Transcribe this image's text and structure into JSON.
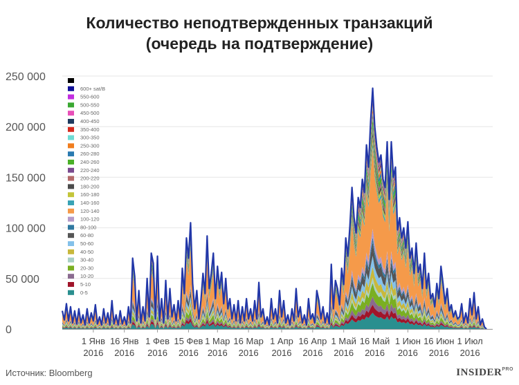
{
  "chart_data": {
    "type": "area",
    "title_line1": "Количество неподтвержденных транзакций",
    "title_line2": "(очередь на подтверждение)",
    "xlabel": "",
    "ylabel": "",
    "ylim": [
      0,
      250000
    ],
    "y_ticks": [
      {
        "value": 0,
        "label": "0"
      },
      {
        "value": 50000,
        "label": "50 000"
      },
      {
        "value": 100000,
        "label": "100 000"
      },
      {
        "value": 150000,
        "label": "150 000"
      },
      {
        "value": 200000,
        "label": "200 000"
      },
      {
        "value": 250000,
        "label": "250 000"
      }
    ],
    "x_range_days": [
      0,
      208
    ],
    "x_ticks": [
      {
        "day": 15,
        "line1": "1 Янв",
        "line2": "2016"
      },
      {
        "day": 30,
        "line1": "16 Янв",
        "line2": "2016"
      },
      {
        "day": 46,
        "line1": "1 Фев",
        "line2": "2016"
      },
      {
        "day": 61,
        "line1": "15 Фев",
        "line2": "2016"
      },
      {
        "day": 75,
        "line1": "1 Мар",
        "line2": "2016"
      },
      {
        "day": 90,
        "line1": "16 Мар",
        "line2": "2016"
      },
      {
        "day": 106,
        "line1": "1 Апр",
        "line2": "2016"
      },
      {
        "day": 121,
        "line1": "16 Апр",
        "line2": "2016"
      },
      {
        "day": 136,
        "line1": "1 Май",
        "line2": "2016"
      },
      {
        "day": 151,
        "line1": "16 Май",
        "line2": "2016"
      },
      {
        "day": 167,
        "line1": "1 Июн",
        "line2": "2016"
      },
      {
        "day": 182,
        "line1": "16 Июн",
        "line2": "2016"
      },
      {
        "day": 197,
        "line1": "1 Июл",
        "line2": "2016"
      }
    ],
    "total": [
      [
        0,
        18000
      ],
      [
        1,
        9000
      ],
      [
        2,
        25000
      ],
      [
        3,
        8000
      ],
      [
        4,
        22000
      ],
      [
        5,
        6000
      ],
      [
        6,
        18000
      ],
      [
        7,
        5000
      ],
      [
        8,
        20000
      ],
      [
        9,
        6000
      ],
      [
        10,
        14000
      ],
      [
        11,
        4000
      ],
      [
        12,
        20000
      ],
      [
        13,
        6000
      ],
      [
        14,
        16000
      ],
      [
        15,
        8000
      ],
      [
        16,
        24000
      ],
      [
        17,
        5000
      ],
      [
        18,
        12000
      ],
      [
        19,
        4000
      ],
      [
        20,
        20000
      ],
      [
        21,
        6000
      ],
      [
        22,
        16000
      ],
      [
        23,
        4000
      ],
      [
        24,
        28000
      ],
      [
        25,
        5000
      ],
      [
        26,
        14000
      ],
      [
        27,
        4000
      ],
      [
        28,
        18000
      ],
      [
        29,
        5000
      ],
      [
        30,
        12000
      ],
      [
        31,
        4000
      ],
      [
        32,
        22000
      ],
      [
        33,
        6000
      ],
      [
        34,
        70000
      ],
      [
        35,
        52000
      ],
      [
        36,
        8000
      ],
      [
        37,
        38000
      ],
      [
        38,
        6000
      ],
      [
        39,
        22000
      ],
      [
        40,
        8000
      ],
      [
        41,
        50000
      ],
      [
        42,
        12000
      ],
      [
        43,
        75000
      ],
      [
        44,
        65000
      ],
      [
        45,
        10000
      ],
      [
        46,
        72000
      ],
      [
        47,
        8000
      ],
      [
        48,
        30000
      ],
      [
        49,
        6000
      ],
      [
        50,
        48000
      ],
      [
        51,
        10000
      ],
      [
        52,
        40000
      ],
      [
        53,
        12000
      ],
      [
        54,
        24000
      ],
      [
        55,
        8000
      ],
      [
        56,
        28000
      ],
      [
        57,
        10000
      ],
      [
        58,
        60000
      ],
      [
        59,
        35000
      ],
      [
        60,
        90000
      ],
      [
        61,
        70000
      ],
      [
        62,
        105000
      ],
      [
        63,
        45000
      ],
      [
        64,
        20000
      ],
      [
        65,
        38000
      ],
      [
        66,
        10000
      ],
      [
        67,
        28000
      ],
      [
        68,
        55000
      ],
      [
        69,
        35000
      ],
      [
        70,
        92000
      ],
      [
        71,
        40000
      ],
      [
        72,
        55000
      ],
      [
        73,
        75000
      ],
      [
        74,
        30000
      ],
      [
        75,
        62000
      ],
      [
        76,
        40000
      ],
      [
        77,
        56000
      ],
      [
        78,
        25000
      ],
      [
        79,
        50000
      ],
      [
        80,
        20000
      ],
      [
        81,
        30000
      ],
      [
        82,
        10000
      ],
      [
        83,
        24000
      ],
      [
        84,
        8000
      ],
      [
        85,
        28000
      ],
      [
        86,
        6000
      ],
      [
        87,
        22000
      ],
      [
        88,
        8000
      ],
      [
        89,
        30000
      ],
      [
        90,
        10000
      ],
      [
        91,
        20000
      ],
      [
        92,
        8000
      ],
      [
        93,
        28000
      ],
      [
        94,
        10000
      ],
      [
        95,
        46000
      ],
      [
        96,
        12000
      ],
      [
        97,
        20000
      ],
      [
        98,
        5000
      ],
      [
        99,
        12000
      ],
      [
        100,
        4000
      ],
      [
        101,
        30000
      ],
      [
        102,
        10000
      ],
      [
        103,
        20000
      ],
      [
        104,
        6000
      ],
      [
        105,
        38000
      ],
      [
        106,
        12000
      ],
      [
        107,
        28000
      ],
      [
        108,
        6000
      ],
      [
        109,
        14000
      ],
      [
        110,
        4000
      ],
      [
        111,
        20000
      ],
      [
        112,
        8000
      ],
      [
        113,
        40000
      ],
      [
        114,
        12000
      ],
      [
        115,
        22000
      ],
      [
        116,
        6000
      ],
      [
        117,
        14000
      ],
      [
        118,
        4000
      ],
      [
        119,
        30000
      ],
      [
        120,
        10000
      ],
      [
        121,
        15000
      ],
      [
        122,
        6000
      ],
      [
        123,
        38000
      ],
      [
        124,
        28000
      ],
      [
        125,
        10000
      ],
      [
        126,
        22000
      ],
      [
        127,
        6000
      ],
      [
        128,
        16000
      ],
      [
        129,
        5000
      ],
      [
        130,
        64000
      ],
      [
        131,
        20000
      ],
      [
        132,
        48000
      ],
      [
        133,
        40000
      ],
      [
        134,
        24000
      ],
      [
        135,
        60000
      ],
      [
        136,
        44000
      ],
      [
        137,
        90000
      ],
      [
        138,
        72000
      ],
      [
        139,
        102000
      ],
      [
        140,
        140000
      ],
      [
        141,
        110000
      ],
      [
        142,
        95000
      ],
      [
        143,
        130000
      ],
      [
        144,
        120000
      ],
      [
        145,
        148000
      ],
      [
        146,
        135000
      ],
      [
        147,
        182000
      ],
      [
        148,
        160000
      ],
      [
        149,
        205000
      ],
      [
        150,
        238000
      ],
      [
        151,
        200000
      ],
      [
        152,
        180000
      ],
      [
        153,
        165000
      ],
      [
        154,
        172000
      ],
      [
        155,
        148000
      ],
      [
        156,
        140000
      ],
      [
        157,
        185000
      ],
      [
        158,
        128000
      ],
      [
        159,
        185000
      ],
      [
        160,
        150000
      ],
      [
        161,
        160000
      ],
      [
        162,
        98000
      ],
      [
        163,
        110000
      ],
      [
        164,
        90000
      ],
      [
        165,
        100000
      ],
      [
        166,
        80000
      ],
      [
        167,
        106000
      ],
      [
        168,
        70000
      ],
      [
        169,
        80000
      ],
      [
        170,
        55000
      ],
      [
        171,
        85000
      ],
      [
        172,
        56000
      ],
      [
        173,
        64000
      ],
      [
        174,
        40000
      ],
      [
        175,
        75000
      ],
      [
        176,
        40000
      ],
      [
        177,
        55000
      ],
      [
        178,
        30000
      ],
      [
        179,
        35000
      ],
      [
        180,
        22000
      ],
      [
        181,
        45000
      ],
      [
        182,
        30000
      ],
      [
        183,
        62000
      ],
      [
        184,
        45000
      ],
      [
        185,
        25000
      ],
      [
        186,
        40000
      ],
      [
        187,
        18000
      ],
      [
        188,
        24000
      ],
      [
        189,
        12000
      ],
      [
        190,
        18000
      ],
      [
        191,
        10000
      ],
      [
        192,
        12000
      ],
      [
        193,
        25000
      ],
      [
        194,
        6000
      ],
      [
        195,
        16000
      ],
      [
        196,
        6000
      ],
      [
        197,
        30000
      ],
      [
        198,
        14000
      ],
      [
        199,
        36000
      ],
      [
        200,
        10000
      ],
      [
        201,
        22000
      ],
      [
        202,
        4000
      ],
      [
        203,
        10000
      ],
      [
        204,
        2000
      ],
      [
        205,
        0
      ]
    ],
    "series": [
      {
        "name": "0-5",
        "color": "#2a8f8f",
        "weight": 6
      },
      {
        "name": "5-10",
        "color": "#a0152a",
        "weight": 3
      },
      {
        "name": "10-20",
        "color": "#8a6b8f",
        "weight": 3
      },
      {
        "name": "20-30",
        "color": "#7aaf22",
        "weight": 5
      },
      {
        "name": "30-40",
        "color": "#a8d0c4",
        "weight": 2
      },
      {
        "name": "40-50",
        "color": "#c8b83c",
        "weight": 4
      },
      {
        "name": "50-60",
        "color": "#84c1ea",
        "weight": 4
      },
      {
        "name": "60-80",
        "color": "#555555",
        "weight": 5
      },
      {
        "name": "80-100",
        "color": "#2f78a0",
        "weight": 2
      },
      {
        "name": "100-120",
        "color": "#b59ac9",
        "weight": 3
      },
      {
        "name": "120-140",
        "color": "#f59a4a",
        "weight": 30
      },
      {
        "name": "140-160",
        "color": "#39a3b5",
        "weight": 2
      },
      {
        "name": "160-180",
        "color": "#c3c53a",
        "weight": 2
      },
      {
        "name": "180-200",
        "color": "#4b4b4b",
        "weight": 2
      },
      {
        "name": "200-220",
        "color": "#b56b6b",
        "weight": 1
      },
      {
        "name": "220-240",
        "color": "#7a4a8f",
        "weight": 1
      },
      {
        "name": "240-260",
        "color": "#4ab028",
        "weight": 3
      },
      {
        "name": "260-280",
        "color": "#2a7ab0",
        "weight": 2
      },
      {
        "name": "250-300",
        "color": "#f07d1e",
        "weight": 2
      },
      {
        "name": "300-350",
        "color": "#6fdcd4",
        "weight": 1
      },
      {
        "name": "350-400",
        "color": "#d62a1e",
        "weight": 1
      },
      {
        "name": "400-450",
        "color": "#1e3a5f",
        "weight": 1
      },
      {
        "name": "450-500",
        "color": "#e84fb8",
        "weight": 1
      },
      {
        "name": "500-550",
        "color": "#3aa832",
        "weight": 1
      },
      {
        "name": "550-600",
        "color": "#c22ee0",
        "weight": 1
      },
      {
        "name": "600+ sat/B",
        "color": "#111199",
        "weight": 1
      },
      {
        "name": "",
        "color": "#000000",
        "weight": 0
      }
    ],
    "line_color": "#2237a8",
    "grid": true,
    "legend_position": "top-left"
  },
  "source_text": "Источник: Bloomberg",
  "brand": {
    "name": "INSIDER",
    "suffix": "PRO"
  }
}
